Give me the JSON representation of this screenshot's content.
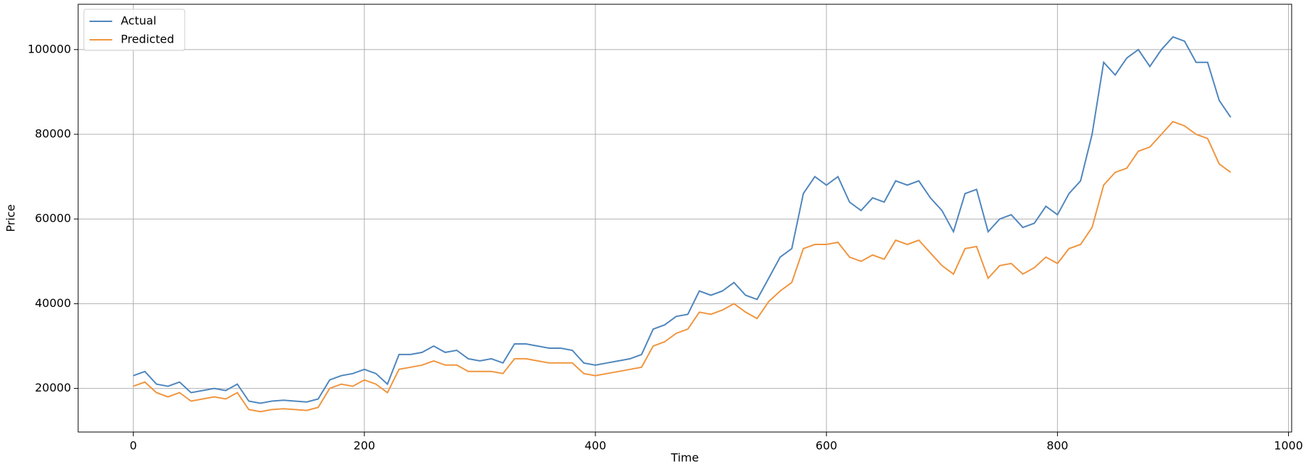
{
  "chart_data": {
    "type": "line",
    "xlabel": "Time",
    "ylabel": "Price",
    "x": [
      0,
      10,
      20,
      30,
      40,
      50,
      60,
      70,
      80,
      90,
      100,
      110,
      120,
      130,
      140,
      150,
      160,
      170,
      180,
      190,
      200,
      210,
      220,
      230,
      240,
      250,
      260,
      270,
      280,
      290,
      300,
      310,
      320,
      330,
      340,
      350,
      360,
      370,
      380,
      390,
      400,
      410,
      420,
      430,
      440,
      450,
      460,
      470,
      480,
      490,
      500,
      510,
      520,
      530,
      540,
      550,
      560,
      570,
      580,
      590,
      600,
      610,
      620,
      630,
      640,
      650,
      660,
      670,
      680,
      690,
      700,
      710,
      720,
      730,
      740,
      750,
      760,
      770,
      780,
      790,
      800,
      810,
      820,
      830,
      840,
      850,
      860,
      870,
      880,
      890,
      900,
      910,
      920,
      930,
      940,
      950
    ],
    "series": [
      {
        "name": "Actual",
        "color": "#4f86bd",
        "values": [
          23000,
          24000,
          21000,
          20500,
          21500,
          19000,
          19500,
          20000,
          19500,
          21000,
          17000,
          16500,
          17000,
          17200,
          17000,
          16800,
          17500,
          22000,
          23000,
          23500,
          24500,
          23500,
          21000,
          28000,
          28000,
          28500,
          30000,
          28500,
          29000,
          27000,
          26500,
          27000,
          26000,
          30500,
          30500,
          30000,
          29500,
          29500,
          29000,
          26000,
          25500,
          26000,
          26500,
          27000,
          28000,
          34000,
          35000,
          37000,
          37500,
          43000,
          42000,
          43000,
          45000,
          42000,
          41000,
          46000,
          51000,
          53000,
          66000,
          70000,
          68000,
          70000,
          64000,
          62000,
          65000,
          64000,
          69000,
          68000,
          69000,
          65000,
          62000,
          57000,
          66000,
          67000,
          57000,
          60000,
          61000,
          58000,
          59000,
          63000,
          61000,
          66000,
          69000,
          80000,
          97000,
          94000,
          98000,
          100000,
          96000,
          100000,
          103000,
          102000,
          97000,
          97000,
          88000,
          84000
        ]
      },
      {
        "name": "Predicted",
        "color": "#f0953f",
        "values": [
          20500,
          21500,
          19000,
          18000,
          19000,
          17000,
          17500,
          18000,
          17500,
          19000,
          15000,
          14500,
          15000,
          15200,
          15000,
          14800,
          15500,
          20000,
          21000,
          20500,
          22000,
          21000,
          19000,
          24500,
          25000,
          25500,
          26500,
          25500,
          25500,
          24000,
          24000,
          24000,
          23500,
          27000,
          27000,
          26500,
          26000,
          26000,
          26000,
          23500,
          23000,
          23500,
          24000,
          24500,
          25000,
          30000,
          31000,
          33000,
          34000,
          38000,
          37500,
          38500,
          40000,
          38000,
          36500,
          40500,
          43000,
          45000,
          53000,
          54000,
          54000,
          54500,
          51000,
          50000,
          51500,
          50500,
          55000,
          54000,
          55000,
          52000,
          49000,
          47000,
          53000,
          53500,
          46000,
          49000,
          49500,
          47000,
          48500,
          51000,
          49500,
          53000,
          54000,
          58000,
          68000,
          71000,
          72000,
          76000,
          77000,
          80000,
          83000,
          82000,
          80000,
          79000,
          73000,
          71000
        ]
      }
    ],
    "xlim": [
      -47.75,
      1002.75
    ],
    "ylim": [
      9700,
      110700
    ],
    "xticks": [
      0,
      200,
      400,
      600,
      800,
      1000
    ],
    "yticks": [
      20000,
      40000,
      60000,
      80000,
      100000
    ],
    "grid": true,
    "legend": "upper left"
  }
}
